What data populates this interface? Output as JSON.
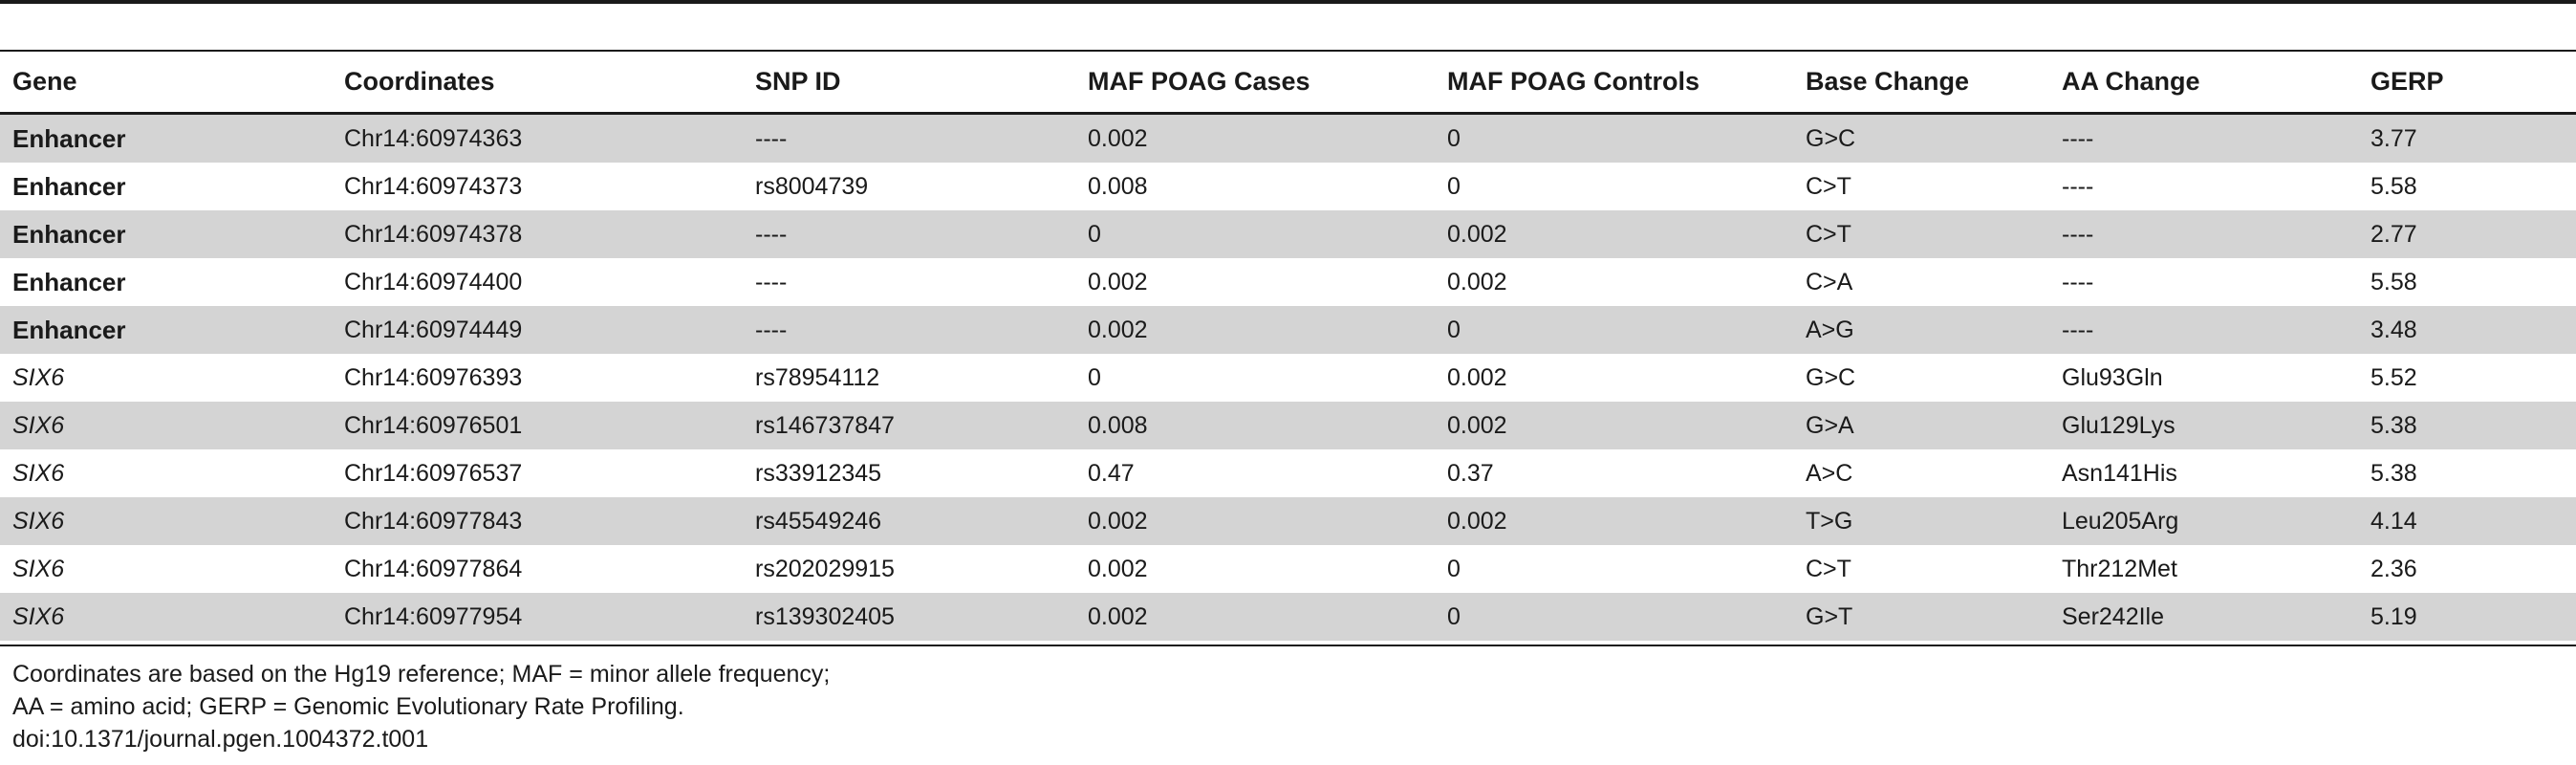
{
  "table": {
    "headers": [
      "Gene",
      "Coordinates",
      "SNP ID",
      "MAF POAG Cases",
      "MAF POAG Controls",
      "Base Change",
      "AA Change",
      "GERP"
    ],
    "rows": [
      {
        "gene": "Enhancer",
        "gene_style": "bold",
        "coordinates": "Chr14:60974363",
        "snp_id": "----",
        "maf_cases": "0.002",
        "maf_controls": "0",
        "base_change": "G>C",
        "aa_change": "----",
        "gerp": "3.77"
      },
      {
        "gene": "Enhancer",
        "gene_style": "bold",
        "coordinates": "Chr14:60974373",
        "snp_id": "rs8004739",
        "maf_cases": "0.008",
        "maf_controls": "0",
        "base_change": "C>T",
        "aa_change": "----",
        "gerp": "5.58"
      },
      {
        "gene": "Enhancer",
        "gene_style": "bold",
        "coordinates": "Chr14:60974378",
        "snp_id": "----",
        "maf_cases": "0",
        "maf_controls": "0.002",
        "base_change": "C>T",
        "aa_change": "----",
        "gerp": "2.77"
      },
      {
        "gene": "Enhancer",
        "gene_style": "bold",
        "coordinates": "Chr14:60974400",
        "snp_id": "----",
        "maf_cases": "0.002",
        "maf_controls": "0.002",
        "base_change": "C>A",
        "aa_change": "----",
        "gerp": "5.58"
      },
      {
        "gene": "Enhancer",
        "gene_style": "bold",
        "coordinates": "Chr14:60974449",
        "snp_id": "----",
        "maf_cases": "0.002",
        "maf_controls": "0",
        "base_change": "A>G",
        "aa_change": "----",
        "gerp": "3.48"
      },
      {
        "gene": "SIX6",
        "gene_style": "italic",
        "coordinates": "Chr14:60976393",
        "snp_id": "rs78954112",
        "maf_cases": "0",
        "maf_controls": "0.002",
        "base_change": "G>C",
        "aa_change": "Glu93Gln",
        "gerp": "5.52"
      },
      {
        "gene": "SIX6",
        "gene_style": "italic",
        "coordinates": "Chr14:60976501",
        "snp_id": "rs146737847",
        "maf_cases": "0.008",
        "maf_controls": "0.002",
        "base_change": "G>A",
        "aa_change": "Glu129Lys",
        "gerp": "5.38"
      },
      {
        "gene": "SIX6",
        "gene_style": "italic",
        "coordinates": "Chr14:60976537",
        "snp_id": "rs33912345",
        "maf_cases": "0.47",
        "maf_controls": "0.37",
        "base_change": "A>C",
        "aa_change": "Asn141His",
        "gerp": "5.38"
      },
      {
        "gene": "SIX6",
        "gene_style": "italic",
        "coordinates": "Chr14:60977843",
        "snp_id": "rs45549246",
        "maf_cases": "0.002",
        "maf_controls": "0.002",
        "base_change": "T>G",
        "aa_change": "Leu205Arg",
        "gerp": "4.14"
      },
      {
        "gene": "SIX6",
        "gene_style": "italic",
        "coordinates": "Chr14:60977864",
        "snp_id": "rs202029915",
        "maf_cases": "0.002",
        "maf_controls": "0",
        "base_change": "C>T",
        "aa_change": "Thr212Met",
        "gerp": "2.36"
      },
      {
        "gene": "SIX6",
        "gene_style": "italic",
        "coordinates": "Chr14:60977954",
        "snp_id": "rs139302405",
        "maf_cases": "0.002",
        "maf_controls": "0",
        "base_change": "G>T",
        "aa_change": "Ser242Ile",
        "gerp": "5.19"
      }
    ],
    "row_shading": "alternating-gray",
    "shade_color": "#d4d4d4"
  },
  "footnotes": {
    "line1": "Coordinates are based on the Hg19 reference; MAF = minor allele frequency;",
    "line2": "AA = amino acid; GERP = Genomic Evolutionary Rate Profiling.",
    "doi": "doi:10.1371/journal.pgen.1004372.t001"
  }
}
